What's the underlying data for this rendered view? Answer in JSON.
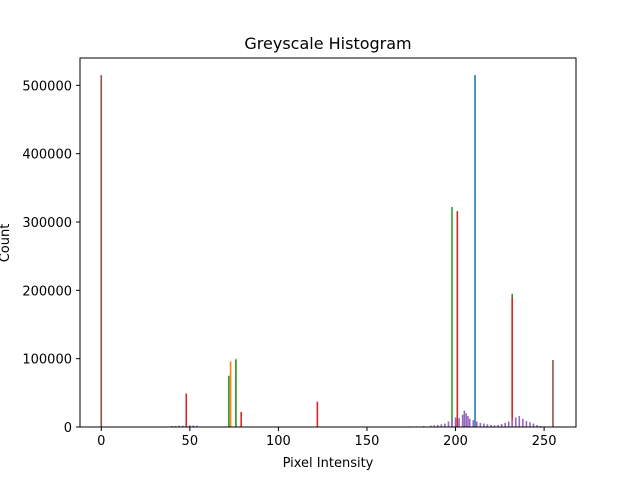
{
  "chart_data": {
    "type": "bar",
    "title": "Greyscale Histogram",
    "xlabel": "Pixel Intensity",
    "ylabel": "Count",
    "xlim": [
      -12,
      268
    ],
    "ylim": [
      0,
      540000
    ],
    "xticks": [
      0,
      50,
      100,
      150,
      200,
      250
    ],
    "yticks": [
      0,
      100000,
      200000,
      300000,
      400000,
      500000
    ],
    "grid": false,
    "legend": "none",
    "series": [
      {
        "color": "#1f77b4",
        "points": [
          [
            211,
            515000
          ],
          [
            48,
            2500
          ],
          [
            52,
            2000
          ]
        ]
      },
      {
        "color": "#ff7f0e",
        "points": [
          [
            73,
            96000
          ],
          [
            76,
            100000
          ],
          [
            72,
            74000
          ]
        ]
      },
      {
        "color": "#2ca02c",
        "points": [
          [
            198,
            322000
          ],
          [
            232,
            195000
          ],
          [
            72,
            75000
          ],
          [
            76,
            98000
          ]
        ]
      },
      {
        "color": "#d62728",
        "points": [
          [
            201,
            316000
          ],
          [
            232,
            190000
          ],
          [
            48,
            49000
          ],
          [
            79,
            22000
          ],
          [
            122,
            37000
          ]
        ]
      },
      {
        "color": "#9467bd",
        "points": [
          [
            40,
            1500
          ],
          [
            42,
            1500
          ],
          [
            44,
            2000
          ],
          [
            46,
            2000
          ],
          [
            50,
            2500
          ],
          [
            54,
            2000
          ],
          [
            174,
            1000
          ],
          [
            178,
            1000
          ],
          [
            182,
            1500
          ],
          [
            186,
            2000
          ],
          [
            188,
            2500
          ],
          [
            190,
            3000
          ],
          [
            192,
            4000
          ],
          [
            194,
            5000
          ],
          [
            196,
            8000
          ],
          [
            198,
            12000
          ],
          [
            200,
            14000
          ],
          [
            202,
            13000
          ],
          [
            204,
            18000
          ],
          [
            205,
            24000
          ],
          [
            206,
            20000
          ],
          [
            207,
            16000
          ],
          [
            208,
            12000
          ],
          [
            210,
            10000
          ],
          [
            212,
            8000
          ],
          [
            214,
            6000
          ],
          [
            216,
            5000
          ],
          [
            218,
            4000
          ],
          [
            220,
            3000
          ],
          [
            222,
            2500
          ],
          [
            224,
            3000
          ],
          [
            226,
            4500
          ],
          [
            228,
            6000
          ],
          [
            230,
            8000
          ],
          [
            232,
            11000
          ],
          [
            234,
            14000
          ],
          [
            236,
            16000
          ],
          [
            238,
            12000
          ],
          [
            240,
            9000
          ],
          [
            242,
            7000
          ],
          [
            244,
            5000
          ],
          [
            246,
            3000
          ],
          [
            248,
            1500
          ]
        ]
      },
      {
        "color": "#8c564b",
        "points": [
          [
            0,
            515000
          ],
          [
            255,
            98000
          ]
        ]
      }
    ]
  }
}
